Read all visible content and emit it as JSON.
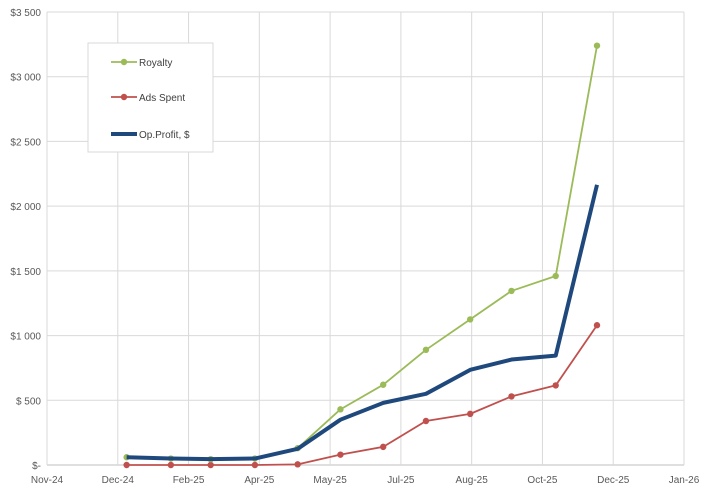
{
  "chart_data": {
    "type": "line",
    "title": "",
    "xlabel": "",
    "ylabel": "",
    "ylim": [
      0,
      3500
    ],
    "y_ticks": [
      0,
      500,
      1000,
      1500,
      2000,
      2500,
      3000,
      3500
    ],
    "y_tick_labels": [
      "$-",
      "$ 500",
      "$1 000",
      "$1 500",
      "$2 000",
      "$2 500",
      "$3 000",
      "$3 500"
    ],
    "x_ticks": [
      "2024-11-12",
      "2024-12-30",
      "2025-02-16",
      "2025-04-05",
      "2025-05-23",
      "2025-07-10",
      "2025-08-27",
      "2025-10-14",
      "2025-12-01",
      "2026-01-18"
    ],
    "x_tick_labels": [
      "Nov-24",
      "Dec-24",
      "Feb-25",
      "Apr-25",
      "May-25",
      "Jul-25",
      "Aug-25",
      "Oct-25",
      "Dec-25",
      "Jan-26"
    ],
    "x": [
      "2025-01-05",
      "2025-02-04",
      "2025-03-03",
      "2025-04-02",
      "2025-05-01",
      "2025-05-30",
      "2025-06-28",
      "2025-07-27",
      "2025-08-26",
      "2025-09-23",
      "2025-10-23",
      "2025-11-20"
    ],
    "grid": true,
    "legend_position": "top-left",
    "series": [
      {
        "name": "Royalty",
        "color": "#9bbb59",
        "markers": true,
        "values": [
          60,
          50,
          45,
          50,
          130,
          430,
          620,
          890,
          1125,
          1345,
          1460,
          3240
        ]
      },
      {
        "name": "Ads Spent",
        "color": "#c0504d",
        "markers": true,
        "values": [
          0,
          0,
          0,
          0,
          5,
          80,
          140,
          340,
          395,
          530,
          615,
          1080
        ]
      },
      {
        "name": "Op.Profit, $",
        "color": "#1f497d",
        "markers": false,
        "values": [
          60,
          50,
          45,
          50,
          125,
          350,
          480,
          550,
          735,
          815,
          845,
          2165
        ]
      }
    ]
  }
}
